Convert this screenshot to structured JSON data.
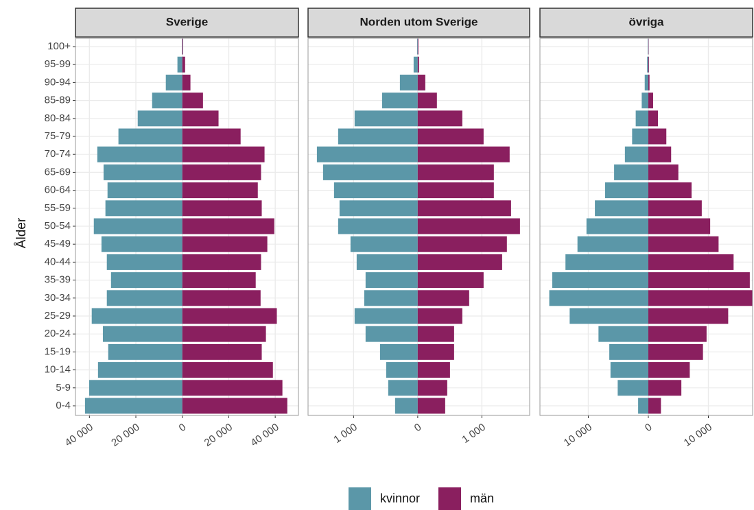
{
  "chart_data": {
    "type": "pyramid",
    "ylabel": "Ålder",
    "categories": [
      "0-4",
      "5-9",
      "10-14",
      "15-19",
      "20-24",
      "25-29",
      "30-34",
      "35-39",
      "40-44",
      "45-49",
      "50-54",
      "55-59",
      "60-64",
      "65-69",
      "70-74",
      "75-79",
      "80-84",
      "85-89",
      "90-94",
      "95-99",
      "100+"
    ],
    "series": [
      {
        "name": "kvinnor",
        "color": "#5b97a8"
      },
      {
        "name": "män",
        "color": "#8a1f5f"
      }
    ],
    "grid": true,
    "panels": [
      {
        "title": "Sverige",
        "xlim": [
          -46000,
          50000
        ],
        "xticks": [
          {
            "value": -40000,
            "label": "40 000"
          },
          {
            "value": -20000,
            "label": "20 000"
          },
          0,
          {
            "value": 20000,
            "label": "20 000"
          },
          {
            "value": 40000,
            "label": "40 000"
          }
        ],
        "series": [
          {
            "values": [
              -41900,
              -40100,
              -36300,
              -31900,
              -34200,
              -39000,
              -32500,
              -30700,
              -32500,
              -34800,
              -38100,
              -33100,
              -32200,
              -33900,
              -36600,
              -27500,
              -19200,
              -13000,
              -7100,
              -2100,
              -200
            ]
          },
          {
            "values": [
              45200,
              43100,
              39000,
              34200,
              36000,
              40700,
              33700,
              31600,
              33900,
              36600,
              39600,
              34200,
              32500,
              33900,
              35400,
              25100,
              15600,
              8900,
              3500,
              1200,
              300
            ]
          }
        ]
      },
      {
        "title": "Norden utom Sverige",
        "xlim": [
          -1710,
          1745
        ],
        "xticks": [
          {
            "value": -1000,
            "label": "1 000"
          },
          0,
          {
            "value": 1000,
            "label": "1 000"
          }
        ],
        "series": [
          {
            "values": [
              -353,
              -460,
              -492,
              -588,
              -813,
              -984,
              -834,
              -813,
              -952,
              -1048,
              -1241,
              -1219,
              -1305,
              -1476,
              -1572,
              -1241,
              -984,
              -556,
              -278,
              -64,
              -10
            ]
          },
          {
            "values": [
              428,
              460,
              503,
              567,
              567,
              695,
              802,
              1027,
              1316,
              1390,
              1594,
              1455,
              1187,
              1187,
              1433,
              1027,
              695,
              299,
              118,
              21,
              10
            ]
          }
        ]
      },
      {
        "title": "övriga",
        "xlim": [
          -18050,
          17370
        ],
        "xticks": [
          {
            "value": -10000,
            "label": "10 000"
          },
          0,
          {
            "value": 10000,
            "label": "10 000"
          }
        ],
        "series": [
          {
            "values": [
              -1700,
              -5100,
              -6300,
              -6500,
              -8300,
              -13100,
              -16500,
              -16000,
              -13800,
              -11800,
              -10300,
              -8900,
              -7200,
              -5700,
              -3900,
              -2700,
              -2100,
              -1100,
              -600,
              -200,
              -100
            ]
          },
          {
            "values": [
              2100,
              5500,
              6900,
              9100,
              9700,
              13300,
              17300,
              16900,
              14200,
              11700,
              10300,
              8900,
              7200,
              5000,
              3800,
              3000,
              1600,
              800,
              200,
              100,
              50
            ]
          }
        ]
      }
    ]
  }
}
